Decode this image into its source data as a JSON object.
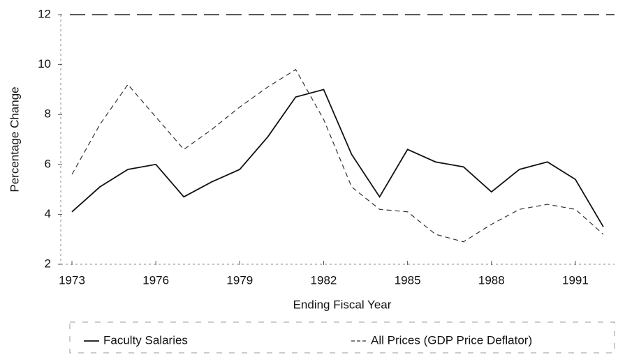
{
  "chart_data": {
    "type": "line",
    "x_label": "Ending Fiscal Year",
    "y_label": "Percentage Change",
    "x": [
      1973,
      1974,
      1975,
      1976,
      1977,
      1978,
      1979,
      1980,
      1981,
      1982,
      1983,
      1984,
      1985,
      1986,
      1987,
      1988,
      1989,
      1990,
      1991,
      1992
    ],
    "series": [
      {
        "name": "Faculty Salaries",
        "color": "#111111",
        "line_style": "solid",
        "values": [
          4.1,
          5.1,
          5.8,
          6.0,
          4.7,
          5.3,
          5.8,
          7.1,
          8.7,
          9.0,
          6.4,
          4.7,
          6.6,
          6.1,
          5.9,
          4.9,
          5.8,
          6.1,
          5.4,
          3.5
        ]
      },
      {
        "name": "All Prices (GDP Price Deflator)",
        "color": "#333333",
        "line_style": "dashed",
        "values": [
          5.6,
          7.6,
          9.2,
          7.9,
          6.6,
          7.4,
          8.3,
          9.1,
          9.8,
          7.8,
          5.1,
          4.2,
          4.1,
          3.2,
          2.9,
          3.6,
          4.2,
          4.4,
          4.2,
          3.2
        ]
      }
    ],
    "xlim": [
      1972.6,
      1992.4
    ],
    "xticks": [
      1973,
      1976,
      1979,
      1982,
      1985,
      1988,
      1991
    ],
    "ylim": [
      2,
      12
    ],
    "yticks": [
      2,
      4,
      6,
      8,
      10,
      12
    ],
    "grid": false,
    "legend": "bottom"
  }
}
